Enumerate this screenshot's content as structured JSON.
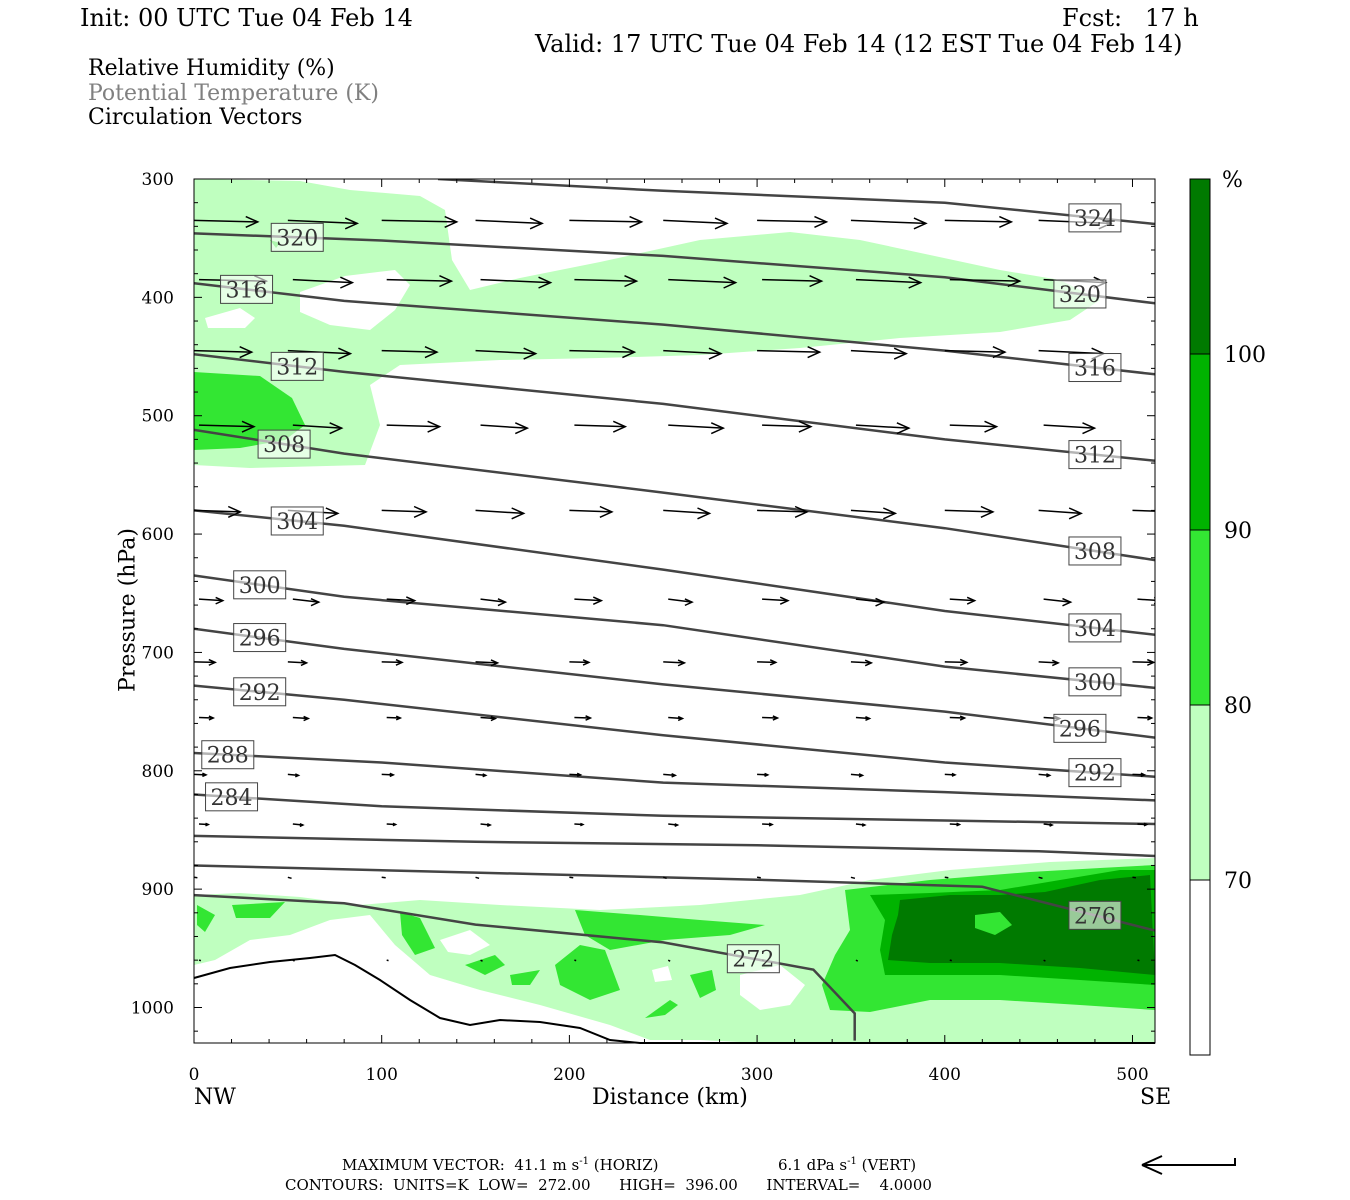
{
  "header": {
    "init": "Init: 00 UTC Tue 04 Feb 14",
    "fcst": "Fcst:   17 h",
    "valid": "Valid: 17 UTC Tue 04 Feb 14 (12 EST Tue 04 Feb 14)"
  },
  "legend": {
    "rh": "Relative Humidity (%)",
    "theta": "Potential Temperature (K)",
    "vectors": "Circulation Vectors"
  },
  "footer": {
    "max_vector": "MAXIMUM VECTOR:  41.1 m s",
    "sup1": "-1",
    "horiz": "(HORIZ)",
    "vert_val": "6.1 dPa s",
    "sup2": "-1",
    "vert": "(VERT)",
    "contours": "CONTOURS:  UNITS=K  LOW=  272.00      HIGH=  396.00      INTERVAL=    4.0000"
  },
  "colors": {
    "rh_70_80": "#bfffbf",
    "rh_80_90": "#33e633",
    "rh_90_100": "#00b300",
    "rh_100": "#007a00",
    "contour": "#444444"
  },
  "chart_data": {
    "type": "cross-section",
    "xlabel": "Distance (km)",
    "ylabel": "Pressure (hPa)",
    "xlim": [
      0,
      512
    ],
    "ylim": [
      1030,
      300
    ],
    "x_ticks": [
      0,
      100,
      200,
      300,
      400,
      500
    ],
    "y_ticks": [
      300,
      400,
      500,
      600,
      700,
      800,
      900,
      1000
    ],
    "x_end_labels": [
      "NW",
      "SE"
    ],
    "colorbar": {
      "unit": "%",
      "levels": [
        70,
        80,
        90,
        100
      ]
    },
    "theta_contours": [
      {
        "level": 324,
        "label": "324",
        "points": [
          [
            130,
            300
          ],
          [
            250,
            310
          ],
          [
            400,
            320
          ],
          [
            512,
            338
          ]
        ]
      },
      {
        "level": 320,
        "label": "320",
        "points": [
          [
            0,
            346
          ],
          [
            100,
            352
          ],
          [
            250,
            365
          ],
          [
            400,
            383
          ],
          [
            512,
            405
          ]
        ]
      },
      {
        "level": 316,
        "label": "316",
        "points": [
          [
            0,
            388
          ],
          [
            80,
            403
          ],
          [
            250,
            423
          ],
          [
            400,
            445
          ],
          [
            512,
            465
          ]
        ]
      },
      {
        "level": 312,
        "label": "312",
        "points": [
          [
            0,
            448
          ],
          [
            80,
            463
          ],
          [
            250,
            490
          ],
          [
            400,
            520
          ],
          [
            512,
            538
          ]
        ]
      },
      {
        "level": 308,
        "label": "308",
        "points": [
          [
            0,
            512
          ],
          [
            80,
            532
          ],
          [
            250,
            565
          ],
          [
            400,
            595
          ],
          [
            512,
            622
          ]
        ]
      },
      {
        "level": 304,
        "label": "304",
        "points": [
          [
            0,
            580
          ],
          [
            80,
            593
          ],
          [
            250,
            630
          ],
          [
            400,
            665
          ],
          [
            512,
            685
          ]
        ]
      },
      {
        "level": 300,
        "label": "300",
        "points": [
          [
            0,
            635
          ],
          [
            80,
            653
          ],
          [
            250,
            677
          ],
          [
            400,
            712
          ],
          [
            512,
            730
          ]
        ]
      },
      {
        "level": 296,
        "label": "296",
        "points": [
          [
            0,
            680
          ],
          [
            80,
            697
          ],
          [
            250,
            727
          ],
          [
            400,
            750
          ],
          [
            512,
            772
          ]
        ]
      },
      {
        "level": 292,
        "label": "292",
        "points": [
          [
            0,
            728
          ],
          [
            80,
            740
          ],
          [
            250,
            770
          ],
          [
            400,
            793
          ],
          [
            512,
            805
          ]
        ]
      },
      {
        "level": 288,
        "label": "288",
        "points": [
          [
            0,
            785
          ],
          [
            100,
            793
          ],
          [
            250,
            810
          ],
          [
            400,
            818
          ],
          [
            512,
            825
          ]
        ]
      },
      {
        "level": 284,
        "label": "284",
        "points": [
          [
            0,
            820
          ],
          [
            100,
            830
          ],
          [
            250,
            838
          ],
          [
            400,
            842
          ],
          [
            512,
            845
          ]
        ]
      },
      {
        "level": 280,
        "label": "",
        "points": [
          [
            0,
            855
          ],
          [
            150,
            860
          ],
          [
            300,
            863
          ],
          [
            450,
            868
          ],
          [
            512,
            872
          ]
        ]
      },
      {
        "level": 276,
        "label": "276",
        "points": [
          [
            0,
            880
          ],
          [
            150,
            886
          ],
          [
            300,
            892
          ],
          [
            420,
            898
          ],
          [
            512,
            935
          ]
        ]
      },
      {
        "level": 272,
        "label": "272",
        "points": [
          [
            0,
            905
          ],
          [
            80,
            912
          ],
          [
            150,
            930
          ],
          [
            250,
            945
          ],
          [
            330,
            968
          ],
          [
            352,
            1005
          ],
          [
            352,
            1028
          ]
        ]
      }
    ],
    "vector_rows_hPa": [
      335,
      385,
      445,
      508,
      580,
      655,
      708,
      755,
      803,
      845,
      890,
      960
    ]
  }
}
